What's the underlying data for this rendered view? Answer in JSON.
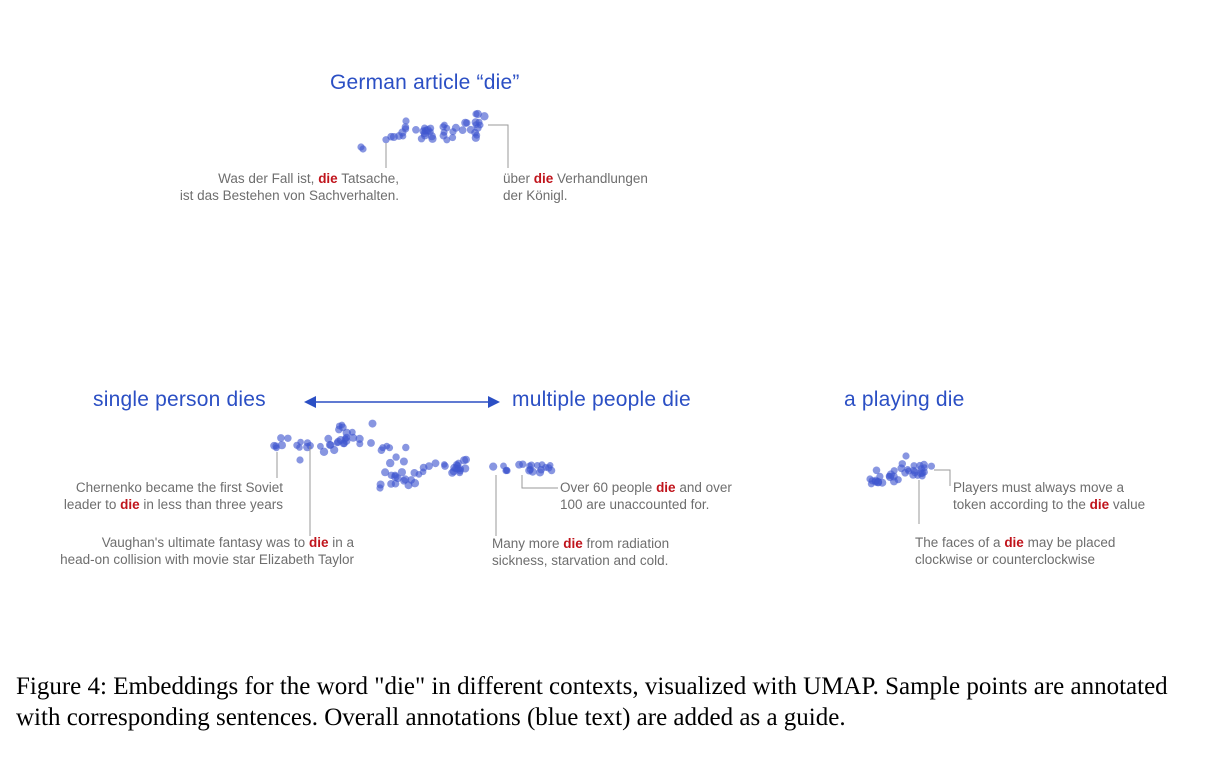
{
  "figure": {
    "groups": {
      "german": "German article “die”",
      "single": "single person dies",
      "multiple": "multiple people die",
      "playing": "a playing die"
    },
    "annotations": {
      "german_1": {
        "line1": [
          "Was der Fall ist, ",
          "die",
          " Tatsache,"
        ],
        "line2": [
          "ist das Bestehen von Sachverhalten."
        ]
      },
      "german_2": {
        "line1": [
          "über ",
          "die",
          " Verhandlungen"
        ],
        "line2": [
          "der Königl."
        ]
      },
      "single_1": {
        "line1": [
          "Chernenko became the first Soviet"
        ],
        "line2": [
          "leader to ",
          "die",
          " in less than three years"
        ]
      },
      "single_2": {
        "line1": [
          "Vaughan's ultimate fantasy was to ",
          "die",
          " in a"
        ],
        "line2": [
          "head-on collision with movie star Elizabeth Taylor"
        ]
      },
      "multiple_1": {
        "line1": [
          "Over 60 people ",
          "die",
          " and over"
        ],
        "line2": [
          "100 are unaccounted for."
        ]
      },
      "multiple_2": {
        "line1": [
          "Many more ",
          "die",
          " from radiation"
        ],
        "line2": [
          "sickness, starvation and cold."
        ]
      },
      "playing_1": {
        "line1": [
          "Players must always move a"
        ],
        "line2": [
          "token according to the ",
          "die",
          " value"
        ]
      },
      "playing_2": {
        "line1": [
          "The faces of a ",
          "die",
          " may be placed"
        ],
        "line2": [
          "clockwise or counterclockwise"
        ]
      }
    },
    "colors": {
      "points": "#3f55cf",
      "group_title": "#2b4fc4",
      "keyword": "#c0141c",
      "annotation_text": "#6e6e6e",
      "leader_line": "#9a9a9a"
    }
  },
  "caption": "Figure 4: Embeddings for the word \"die\" in different contexts, visualized with UMAP. Sample points are annotated with corresponding sentences. Overall annotations (blue text) are added as a guide."
}
